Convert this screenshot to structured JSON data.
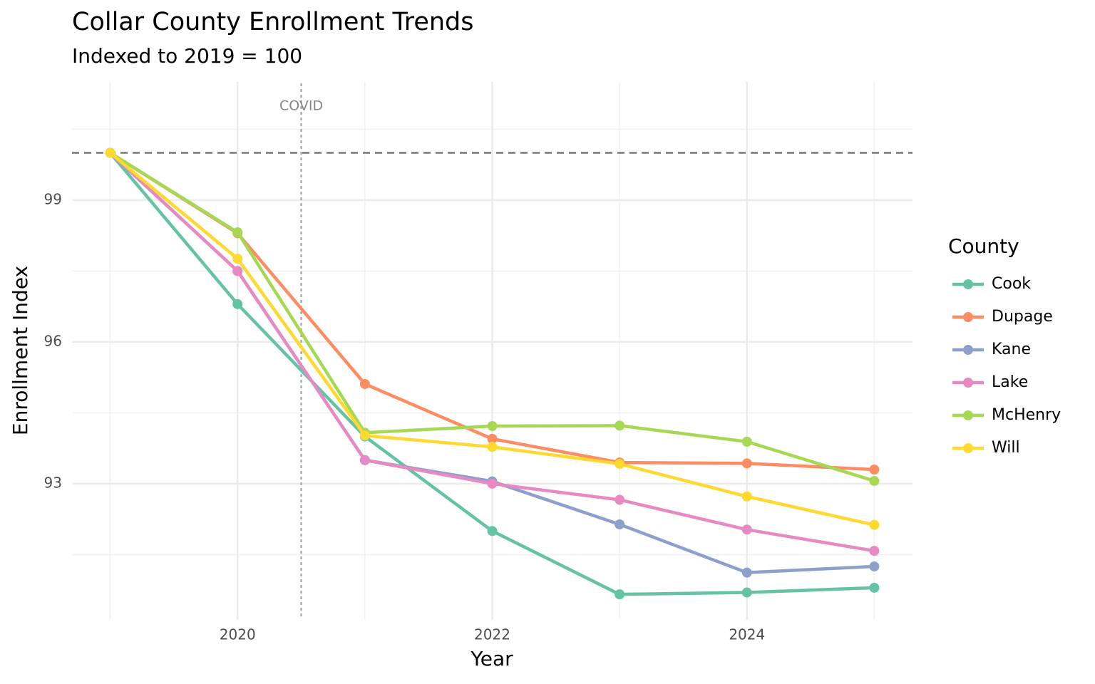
{
  "chart_data": {
    "type": "line",
    "title": "Collar County Enrollment Trends",
    "subtitle": "Indexed to 2019 = 100",
    "x_label": "Year",
    "y_label": "Enrollment Index",
    "legend_title": "County",
    "legend_position": "right",
    "x": [
      2019,
      2020,
      2021,
      2022,
      2023,
      2024,
      2025
    ],
    "series": [
      {
        "name": "Cook",
        "color": "#66c2a5",
        "values": [
          100,
          96.8,
          94.0,
          92.0,
          90.66,
          90.7,
          90.8
        ]
      },
      {
        "name": "Dupage",
        "color": "#fc8d62",
        "values": [
          100,
          98.3,
          95.11,
          93.95,
          93.45,
          93.43,
          93.3
        ]
      },
      {
        "name": "Kane",
        "color": "#8da0cb",
        "values": [
          100,
          97.5,
          93.5,
          93.05,
          92.14,
          91.12,
          91.25
        ]
      },
      {
        "name": "Lake",
        "color": "#e78ac3",
        "values": [
          100,
          97.5,
          93.5,
          93.0,
          92.66,
          92.03,
          91.58
        ]
      },
      {
        "name": "McHenry",
        "color": "#a6d854",
        "values": [
          100,
          98.32,
          94.08,
          94.22,
          94.23,
          93.89,
          93.06
        ]
      },
      {
        "name": "Will",
        "color": "#ffd92f",
        "values": [
          100,
          97.76,
          94.02,
          93.78,
          93.42,
          92.73,
          92.13
        ]
      }
    ],
    "xlim": [
      2018.7,
      2025.3
    ],
    "ylim": [
      90.12,
      101.5
    ],
    "xticks": [
      2020,
      2022,
      2024
    ],
    "yticks": [
      93,
      96,
      99
    ],
    "x_minor_ticks": [
      2019,
      2021,
      2023,
      2025
    ],
    "y_minor_ticks": [
      91.5,
      94.5,
      97.5,
      100.5
    ],
    "grid": true,
    "reference_line": {
      "y": 100
    },
    "event_line": {
      "x": 2020.5,
      "label": "COVID"
    }
  }
}
